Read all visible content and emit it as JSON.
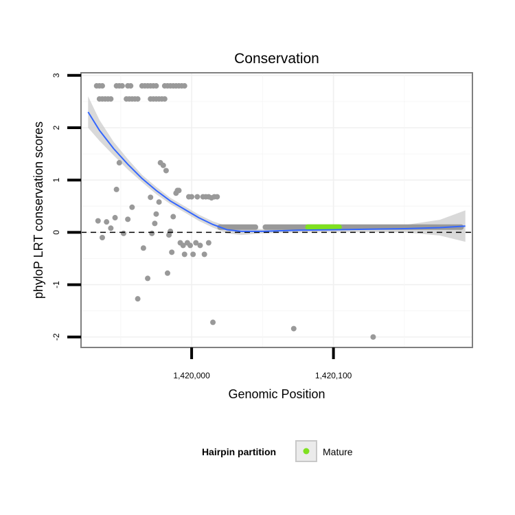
{
  "chart_data": {
    "type": "scatter",
    "title": "Conservation",
    "xlabel": "Genomic Position",
    "ylabel": "phyloP LRT conservation scores",
    "xlim": [
      1419922,
      1420198
    ],
    "ylim": [
      -2.2,
      3.05
    ],
    "x_ticks": [
      1420000,
      1420100
    ],
    "x_tick_labels": [
      "1,420,000",
      "1,420,100"
    ],
    "y_ticks": [
      -2,
      -1,
      0,
      1,
      2,
      3
    ],
    "y_tick_labels": [
      "-2",
      "-1",
      "0",
      "1",
      "2",
      "3"
    ],
    "grid": true,
    "reference_line": {
      "y": 0,
      "style": "dashed",
      "color": "#000000"
    },
    "point_color": "#999999",
    "highlight_color": "#7fe020",
    "smooth_color": "#3366ff",
    "ribbon_color": "#cccccc",
    "scatter_points": [
      [
        1419933,
        2.8
      ],
      [
        1419935,
        2.8
      ],
      [
        1419937,
        2.8
      ],
      [
        1419935,
        2.55
      ],
      [
        1419937,
        2.55
      ],
      [
        1419939,
        2.55
      ],
      [
        1419941,
        2.55
      ],
      [
        1419943,
        2.55
      ],
      [
        1419947,
        2.8
      ],
      [
        1419949,
        2.8
      ],
      [
        1419951,
        2.8
      ],
      [
        1419955,
        2.8
      ],
      [
        1419957,
        2.8
      ],
      [
        1419954,
        2.55
      ],
      [
        1419956,
        2.55
      ],
      [
        1419958,
        2.55
      ],
      [
        1419960,
        2.55
      ],
      [
        1419962,
        2.55
      ],
      [
        1419965,
        2.8
      ],
      [
        1419967,
        2.8
      ],
      [
        1419969,
        2.8
      ],
      [
        1419971,
        2.8
      ],
      [
        1419973,
        2.8
      ],
      [
        1419975,
        2.8
      ],
      [
        1419971,
        2.55
      ],
      [
        1419973,
        2.55
      ],
      [
        1419975,
        2.55
      ],
      [
        1419977,
        2.55
      ],
      [
        1419979,
        2.55
      ],
      [
        1419981,
        2.55
      ],
      [
        1419981,
        2.8
      ],
      [
        1419983,
        2.8
      ],
      [
        1419985,
        2.8
      ],
      [
        1419987,
        2.8
      ],
      [
        1419989,
        2.8
      ],
      [
        1419991,
        2.8
      ],
      [
        1419993,
        2.8
      ],
      [
        1419995,
        2.8
      ],
      [
        1419934,
        0.22
      ],
      [
        1419937,
        -0.1
      ],
      [
        1419940,
        0.2
      ],
      [
        1419943,
        0.08
      ],
      [
        1419946,
        0.28
      ],
      [
        1419947,
        0.82
      ],
      [
        1419949,
        1.33
      ],
      [
        1419952,
        -0.02
      ],
      [
        1419955,
        0.25
      ],
      [
        1419958,
        0.48
      ],
      [
        1419962,
        -1.27
      ],
      [
        1419966,
        -0.3
      ],
      [
        1419969,
        -0.88
      ],
      [
        1419971,
        0.67
      ],
      [
        1419972,
        -0.02
      ],
      [
        1419974,
        0.17
      ],
      [
        1419975,
        0.35
      ],
      [
        1419977,
        0.58
      ],
      [
        1419978,
        1.33
      ],
      [
        1419980,
        1.28
      ],
      [
        1419982,
        1.18
      ],
      [
        1419983,
        -0.78
      ],
      [
        1419984,
        -0.05
      ],
      [
        1419985,
        0.02
      ],
      [
        1419986,
        -0.38
      ],
      [
        1419987,
        0.3
      ],
      [
        1419989,
        0.75
      ],
      [
        1419990,
        0.8
      ],
      [
        1419991,
        0.8
      ],
      [
        1419992,
        -0.2
      ],
      [
        1419994,
        -0.25
      ],
      [
        1419995,
        -0.42
      ],
      [
        1419997,
        -0.2
      ],
      [
        1419999,
        -0.25
      ],
      [
        1420001,
        -0.42
      ],
      [
        1420003,
        -0.2
      ],
      [
        1420006,
        -0.25
      ],
      [
        1420009,
        -0.42
      ],
      [
        1420012,
        -0.2
      ],
      [
        1419998,
        0.68
      ],
      [
        1420000,
        0.68
      ],
      [
        1420004,
        0.68
      ],
      [
        1420008,
        0.68
      ],
      [
        1420010,
        0.68
      ],
      [
        1420012,
        0.68
      ],
      [
        1420014,
        0.66
      ],
      [
        1420016,
        0.68
      ],
      [
        1420018,
        0.68
      ],
      [
        1420015,
        -1.72
      ],
      [
        1420072,
        -1.84
      ],
      [
        1420128,
        -2.0
      ]
    ],
    "dense_segments": [
      {
        "x_start": 1420020,
        "x_end": 1420045,
        "y": 0.1
      },
      {
        "x_start": 1420052,
        "x_end": 1420190,
        "y": 0.1
      }
    ],
    "mature_segment": {
      "x_start": 1420082,
      "x_end": 1420104,
      "y": 0.1
    },
    "smooth_fit": {
      "x": [
        1419927,
        1419935,
        1419945,
        1419955,
        1419965,
        1419975,
        1419985,
        1419995,
        1420005,
        1420015,
        1420025,
        1420035,
        1420050,
        1420075,
        1420100,
        1420125,
        1420150,
        1420175,
        1420193
      ],
      "y": [
        2.3,
        1.95,
        1.6,
        1.3,
        1.03,
        0.8,
        0.6,
        0.44,
        0.28,
        0.15,
        0.05,
        0.02,
        0.02,
        0.04,
        0.05,
        0.06,
        0.07,
        0.09,
        0.12
      ],
      "lower": [
        2.0,
        1.75,
        1.47,
        1.2,
        0.96,
        0.73,
        0.54,
        0.38,
        0.22,
        0.09,
        -0.02,
        -0.05,
        -0.02,
        0.0,
        0.01,
        0.01,
        0.0,
        -0.06,
        -0.18
      ],
      "upper": [
        2.6,
        2.15,
        1.73,
        1.4,
        1.1,
        0.87,
        0.66,
        0.5,
        0.34,
        0.21,
        0.12,
        0.09,
        0.06,
        0.08,
        0.09,
        0.11,
        0.14,
        0.24,
        0.42
      ]
    },
    "legend": {
      "title": "Hairpin partition",
      "entries": [
        "Mature"
      ],
      "placement": "bottom"
    }
  }
}
